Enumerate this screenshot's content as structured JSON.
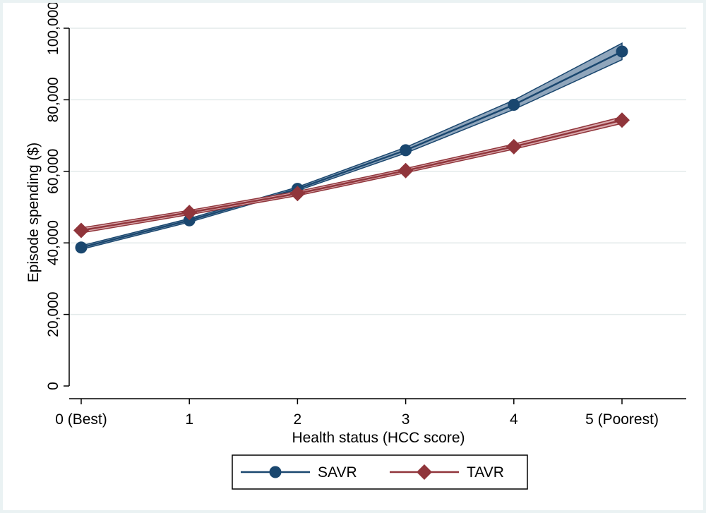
{
  "chart_data": {
    "type": "line",
    "title": "",
    "xlabel": "Health status (HCC score)",
    "ylabel": "Episode spending ($)",
    "x": [
      0,
      1,
      2,
      3,
      4,
      5
    ],
    "x_tick_labels": [
      "0 (Best)",
      "1",
      "2",
      "3",
      "4",
      "5 (Poorest)"
    ],
    "xlim": [
      0,
      5
    ],
    "ylim": [
      0,
      100000
    ],
    "y_ticks": [
      0,
      20000,
      40000,
      60000,
      80000,
      100000
    ],
    "y_tick_labels": [
      "0",
      "20,000",
      "40,000",
      "60,000",
      "80,000",
      "100,000"
    ],
    "grid": true,
    "legend_position": "bottom",
    "series": [
      {
        "name": "SAVR",
        "marker": "circle",
        "color": "#1a476f",
        "band_color": "#90a6bc",
        "values": [
          38700,
          46300,
          55100,
          65900,
          78600,
          93500
        ],
        "ci_low": [
          38200,
          45800,
          54600,
          65100,
          77300,
          91200
        ],
        "ci_high": [
          39200,
          46800,
          55600,
          66700,
          79900,
          95800
        ]
      },
      {
        "name": "TAVR",
        "marker": "diamond",
        "color": "#90353b",
        "band_color": "#d9a9ad",
        "values": [
          43500,
          48500,
          53800,
          60200,
          66900,
          74300
        ],
        "ci_low": [
          42800,
          47900,
          53200,
          59600,
          66200,
          73400
        ],
        "ci_high": [
          44200,
          49100,
          54400,
          60800,
          67600,
          75200
        ]
      }
    ]
  }
}
